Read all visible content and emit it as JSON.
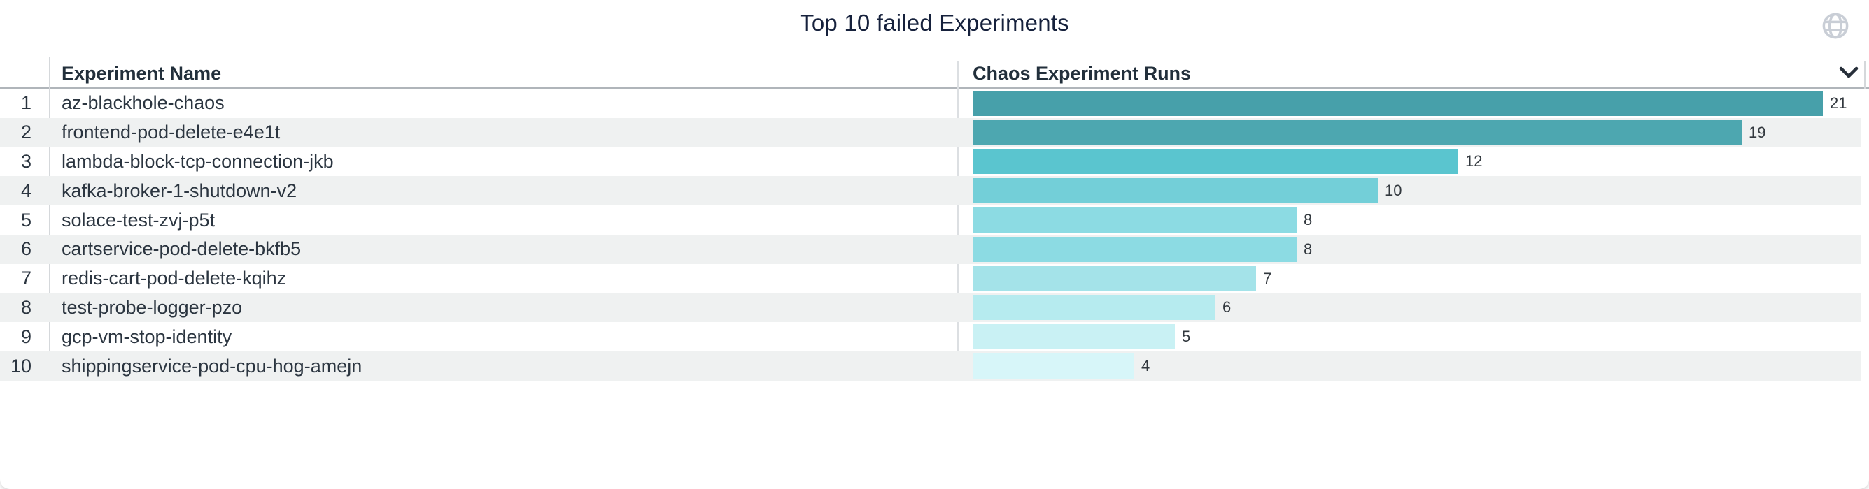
{
  "title": "Top 10 failed Experiments",
  "columns": {
    "name_header": "Experiment Name",
    "runs_header": "Chaos Experiment Runs"
  },
  "icons": {
    "top_right": "globe-icon",
    "runs_column_sort": "chevron-down-icon"
  },
  "colors": {
    "title_text": "#16213c",
    "header_text": "#222f3b",
    "cell_text": "#2b3540",
    "value_label_text": "#32383e",
    "row_stripe": "#eff1f1",
    "header_border": "#b0b5ba",
    "divider": "#d5d8db",
    "globe_icon": "#c9ced6",
    "chevron_icon": "#272f3a"
  },
  "chart_data": {
    "type": "bar",
    "orientation": "horizontal",
    "title": "Top 10 failed Experiments",
    "category_axis_label": "Experiment Name",
    "value_axis_label": "Chaos Experiment Runs",
    "row_numbers": [
      "1",
      "2",
      "3",
      "4",
      "5",
      "6",
      "7",
      "8",
      "9",
      "10"
    ],
    "categories": [
      "az-blackhole-chaos",
      "frontend-pod-delete-e4e1t",
      "lambda-block-tcp-connection-jkb",
      "kafka-broker-1-shutdown-v2",
      "solace-test-zvj-p5t",
      "cartservice-pod-delete-bkfb5",
      "redis-cart-pod-delete-kqihz",
      "test-probe-logger-pzo",
      "gcp-vm-stop-identity",
      "shippingservice-pod-cpu-hog-amejn"
    ],
    "values": [
      21,
      19,
      12,
      10,
      8,
      8,
      7,
      6,
      5,
      4
    ],
    "bar_colors": [
      "#47a0aa",
      "#4da7b0",
      "#5ac5cf",
      "#73cfd8",
      "#8cdbe3",
      "#8cdbe3",
      "#a4e3e9",
      "#b6ebef",
      "#c9f1f4",
      "#d7f6f9"
    ],
    "xlim": [
      0,
      21
    ],
    "grid": false,
    "legend": false,
    "sort": "descending",
    "data_labels": true
  }
}
